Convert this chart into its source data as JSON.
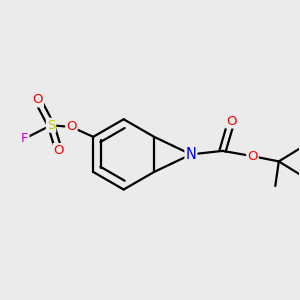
{
  "bg_color": "#ebebeb",
  "bond_color": "#000000",
  "bond_width": 1.6,
  "atom_colors": {
    "O": "#ff0000",
    "N": "#0000ff",
    "S": "#cccc00",
    "F": "#cc00cc",
    "C": "#000000"
  },
  "font_size": 9.5,
  "fig_size": [
    3.0,
    3.0
  ],
  "dpi": 100
}
